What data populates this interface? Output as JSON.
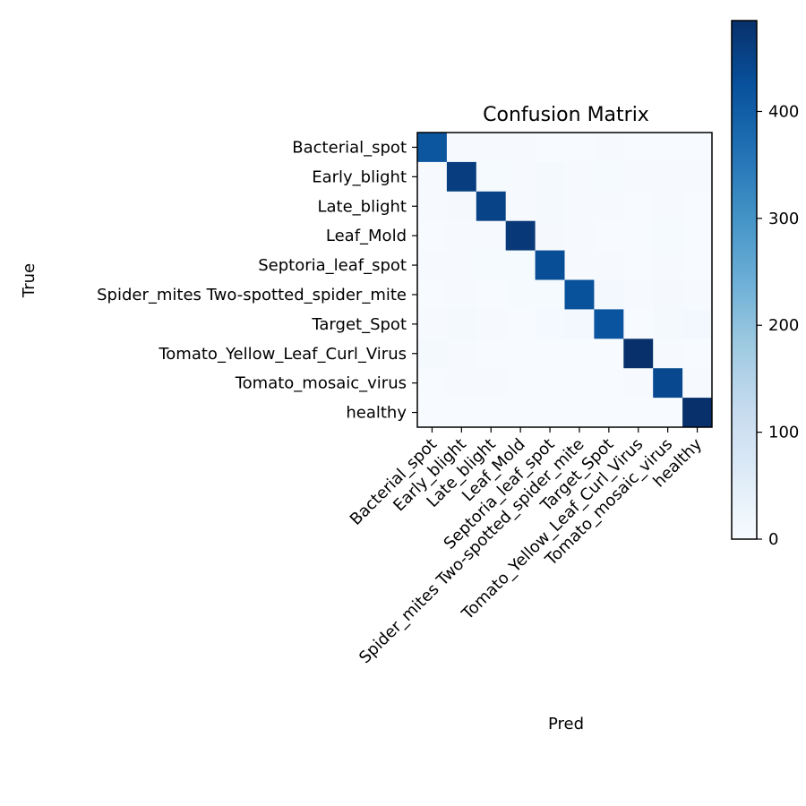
{
  "chart_data": {
    "type": "heatmap",
    "title": "Confusion Matrix",
    "xlabel": "Pred",
    "ylabel": "True",
    "x_categories": [
      "Bacterial_spot",
      "Early_blight",
      "Late_blight",
      "Leaf_Mold",
      "Septoria_leaf_spot",
      "Spider_mites Two-spotted_spider_mite",
      "Target_Spot",
      "Tomato_Yellow_Leaf_Curl_Virus",
      "Tomato_mosaic_virus",
      "healthy"
    ],
    "y_categories": [
      "Bacterial_spot",
      "Early_blight",
      "Late_blight",
      "Leaf_Mold",
      "Septoria_leaf_spot",
      "Spider_mites Two-spotted_spider_mite",
      "Target_Spot",
      "Tomato_Yellow_Leaf_Curl_Virus",
      "Tomato_mosaic_virus",
      "healthy"
    ],
    "matrix": [
      [
        415,
        2,
        3,
        2,
        1,
        1,
        2,
        1,
        1,
        1
      ],
      [
        3,
        460,
        4,
        2,
        8,
        2,
        5,
        2,
        3,
        3
      ],
      [
        2,
        6,
        450,
        3,
        7,
        2,
        2,
        1,
        2,
        1
      ],
      [
        1,
        2,
        3,
        470,
        6,
        2,
        1,
        1,
        4,
        1
      ],
      [
        2,
        3,
        4,
        5,
        430,
        2,
        3,
        1,
        2,
        1
      ],
      [
        1,
        2,
        1,
        4,
        4,
        425,
        12,
        3,
        6,
        2
      ],
      [
        3,
        8,
        2,
        1,
        9,
        10,
        420,
        1,
        7,
        10
      ],
      [
        7,
        2,
        1,
        1,
        1,
        1,
        1,
        485,
        2,
        1
      ],
      [
        1,
        2,
        2,
        1,
        1,
        1,
        1,
        2,
        440,
        2
      ],
      [
        1,
        1,
        1,
        1,
        1,
        1,
        1,
        1,
        1,
        485
      ]
    ],
    "colormap": "Blues",
    "colorbar": {
      "min": 0,
      "max": 485,
      "ticks": [
        0,
        100,
        200,
        300,
        400
      ]
    },
    "grid": false
  }
}
